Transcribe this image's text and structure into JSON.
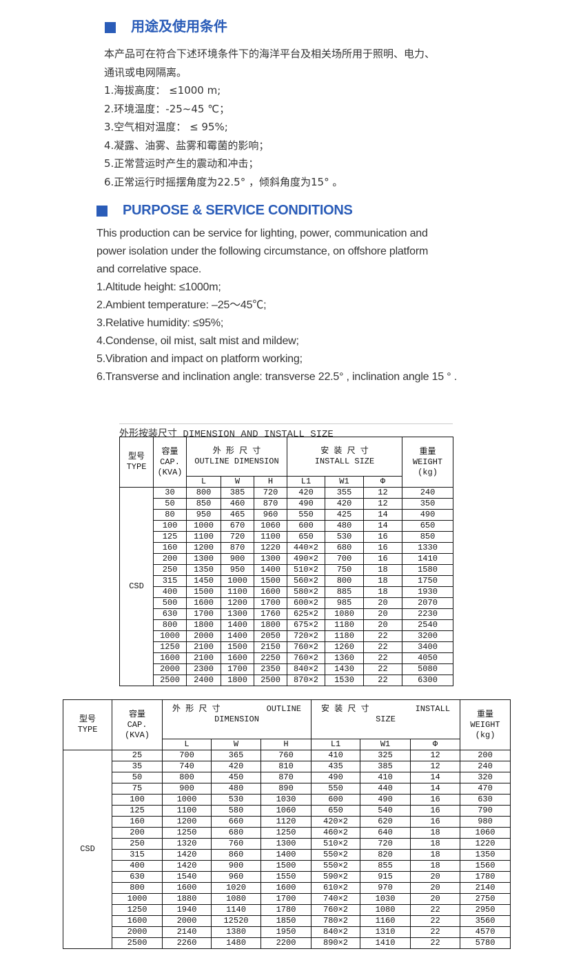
{
  "cn": {
    "heading": "用途及使用条件",
    "lines": [
      "本产品可在符合下述环境条件下的海洋平台及相关场所用于照明、电力、",
      "通讯或电网隔离。",
      "1.海拔高度：  ≤1000 m;",
      "2.环境温度：-25~45 ℃；",
      "3.空气相对温度：  ≤ 95%;",
      "4.凝露、油雾、盐雾和霉菌的影响；",
      "5.正常营运时产生的震动和冲击；",
      "6.正常运行时摇摆角度为22.5° ，倾斜角度为15° 。"
    ]
  },
  "en": {
    "heading": "PURPOSE & SERVICE CONDITIONS",
    "lines": [
      "This production can be service for lighting, power, communication and",
      "power isolation under the following circumstance, on offshore platform",
      "and correlative space.",
      "1.Altitude height: ≤1000m;",
      "2.Ambient temperature: –25～45℃;",
      "3.Relative humidity: ≤95%;",
      "4.Condense, oil mist, salt mist and mildew;",
      "5.Vibration and impact on platform working;",
      "6.Transverse and inclination angle: transverse 22.5° , inclination angle 15 ° ."
    ]
  },
  "accent_color": "#2a5cb8",
  "table1": {
    "title": "外形按装尺寸 DIMENSION AND INSTALL SIZE",
    "headers": {
      "type": [
        "型号",
        "TYPE"
      ],
      "cap": [
        "容量",
        "CAP.",
        "(KVA)"
      ],
      "outline": [
        "外 形 尺 寸",
        "OUTLINE DIMENSION"
      ],
      "install": [
        "安 装 尺 寸",
        "INSTALL SIZE"
      ],
      "weight": [
        "重量",
        "WEIGHT",
        "(kg)"
      ],
      "sub": [
        "L",
        "W",
        "H",
        "L1",
        "W1",
        "Φ"
      ]
    },
    "type_value": "CSD",
    "rows": [
      [
        "30",
        "800",
        "385",
        "720",
        "420",
        "355",
        "12",
        "240"
      ],
      [
        "50",
        "850",
        "460",
        "870",
        "490",
        "420",
        "12",
        "350"
      ],
      [
        "80",
        "950",
        "465",
        "960",
        "550",
        "425",
        "14",
        "490"
      ],
      [
        "100",
        "1000",
        "670",
        "1060",
        "600",
        "480",
        "14",
        "650"
      ],
      [
        "125",
        "1100",
        "720",
        "1100",
        "650",
        "530",
        "16",
        "850"
      ],
      [
        "160",
        "1200",
        "870",
        "1220",
        "440×2",
        "680",
        "16",
        "1330"
      ],
      [
        "200",
        "1300",
        "900",
        "1300",
        "490×2",
        "700",
        "16",
        "1410"
      ],
      [
        "250",
        "1350",
        "950",
        "1400",
        "510×2",
        "750",
        "18",
        "1580"
      ],
      [
        "315",
        "1450",
        "1000",
        "1500",
        "560×2",
        "800",
        "18",
        "1750"
      ],
      [
        "400",
        "1500",
        "1100",
        "1600",
        "580×2",
        "885",
        "18",
        "1930"
      ],
      [
        "500",
        "1600",
        "1200",
        "1700",
        "600×2",
        "985",
        "20",
        "2070"
      ],
      [
        "630",
        "1700",
        "1300",
        "1760",
        "625×2",
        "1080",
        "20",
        "2230"
      ],
      [
        "800",
        "1800",
        "1400",
        "1800",
        "675×2",
        "1180",
        "20",
        "2540"
      ],
      [
        "1000",
        "2000",
        "1400",
        "2050",
        "720×2",
        "1180",
        "22",
        "3200"
      ],
      [
        "1250",
        "2100",
        "1500",
        "2150",
        "760×2",
        "1260",
        "22",
        "3400"
      ],
      [
        "1600",
        "2100",
        "1600",
        "2250",
        "760×2",
        "1360",
        "22",
        "4050"
      ],
      [
        "2000",
        "2300",
        "1700",
        "2350",
        "840×2",
        "1430",
        "22",
        "5080"
      ],
      [
        "2500",
        "2400",
        "1800",
        "2500",
        "870×2",
        "1530",
        "22",
        "6300"
      ]
    ]
  },
  "table2": {
    "headers": {
      "type": [
        "型号",
        "TYPE"
      ],
      "cap": [
        "容量",
        "CAP.",
        "(KVA)"
      ],
      "outline": [
        "外 形 尺 寸",
        "OUTLINE",
        "DIMENSION"
      ],
      "install": [
        "安 装 尺 寸",
        "INSTALL",
        "SIZE"
      ],
      "weight": [
        "重量",
        "WEIGHT",
        "(kg)"
      ],
      "sub": [
        "L",
        "W",
        "H",
        "L1",
        "W1",
        "Φ"
      ]
    },
    "type_value": "CSD",
    "rows": [
      [
        "25",
        "700",
        "365",
        "760",
        "410",
        "325",
        "12",
        "200"
      ],
      [
        "35",
        "740",
        "420",
        "810",
        "435",
        "385",
        "12",
        "240"
      ],
      [
        "50",
        "800",
        "450",
        "870",
        "490",
        "410",
        "14",
        "320"
      ],
      [
        "75",
        "900",
        "480",
        "890",
        "550",
        "440",
        "14",
        "470"
      ],
      [
        "100",
        "1000",
        "530",
        "1030",
        "600",
        "490",
        "16",
        "630"
      ],
      [
        "125",
        "1100",
        "580",
        "1060",
        "650",
        "540",
        "16",
        "790"
      ],
      [
        "160",
        "1200",
        "660",
        "1120",
        "420×2",
        "620",
        "16",
        "980"
      ],
      [
        "200",
        "1250",
        "680",
        "1250",
        "460×2",
        "640",
        "18",
        "1060"
      ],
      [
        "250",
        "1320",
        "760",
        "1300",
        "510×2",
        "720",
        "18",
        "1220"
      ],
      [
        "315",
        "1420",
        "860",
        "1400",
        "550×2",
        "820",
        "18",
        "1350"
      ],
      [
        "400",
        "1420",
        "900",
        "1500",
        "550×2",
        "855",
        "18",
        "1560"
      ],
      [
        "630",
        "1540",
        "960",
        "1550",
        "590×2",
        "915",
        "20",
        "1780"
      ],
      [
        "800",
        "1600",
        "1020",
        "1600",
        "610×2",
        "970",
        "20",
        "2140"
      ],
      [
        "1000",
        "1880",
        "1080",
        "1700",
        "740×2",
        "1030",
        "20",
        "2750"
      ],
      [
        "1250",
        "1940",
        "1140",
        "1780",
        "760×2",
        "1080",
        "22",
        "2950"
      ],
      [
        "1600",
        "2000",
        "12520",
        "1850",
        "780×2",
        "1160",
        "22",
        "3560"
      ],
      [
        "2000",
        "2140",
        "1380",
        "1950",
        "840×2",
        "1310",
        "22",
        "4570"
      ],
      [
        "2500",
        "2260",
        "1480",
        "2200",
        "890×2",
        "1410",
        "22",
        "5780"
      ]
    ]
  }
}
